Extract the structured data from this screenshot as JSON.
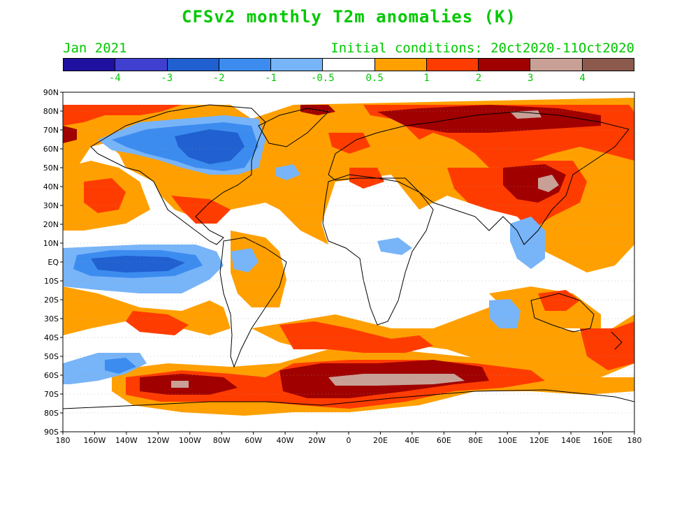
{
  "title": "CFSv2 monthly T2m anomalies (K)",
  "valid_month": "Jan 2021",
  "initial_conditions": "Initial conditions: 20ct2020-11Oct2020",
  "colorbar": {
    "colors": [
      "#2010a0",
      "#4040d0",
      "#2060d0",
      "#3c8cf0",
      "#78b4f8",
      "#ffffff",
      "#ffa000",
      "#ff3c00",
      "#a00000",
      "#c8a096",
      "#8c5a4c"
    ],
    "labels": [
      "-4",
      "-3",
      "-2",
      "-1",
      "-0.5",
      "0.5",
      "1",
      "2",
      "3",
      "4"
    ]
  },
  "axes": {
    "lat_labels": [
      "90N",
      "80N",
      "70N",
      "60N",
      "50N",
      "40N",
      "30N",
      "20N",
      "10N",
      "EQ",
      "10S",
      "20S",
      "30S",
      "40S",
      "50S",
      "60S",
      "70S",
      "80S",
      "90S"
    ],
    "lon_labels": [
      "180",
      "160W",
      "140W",
      "120W",
      "100W",
      "80W",
      "60W",
      "40W",
      "20W",
      "0",
      "20E",
      "40E",
      "60E",
      "80E",
      "100E",
      "120E",
      "140E",
      "160E",
      "180"
    ]
  }
}
